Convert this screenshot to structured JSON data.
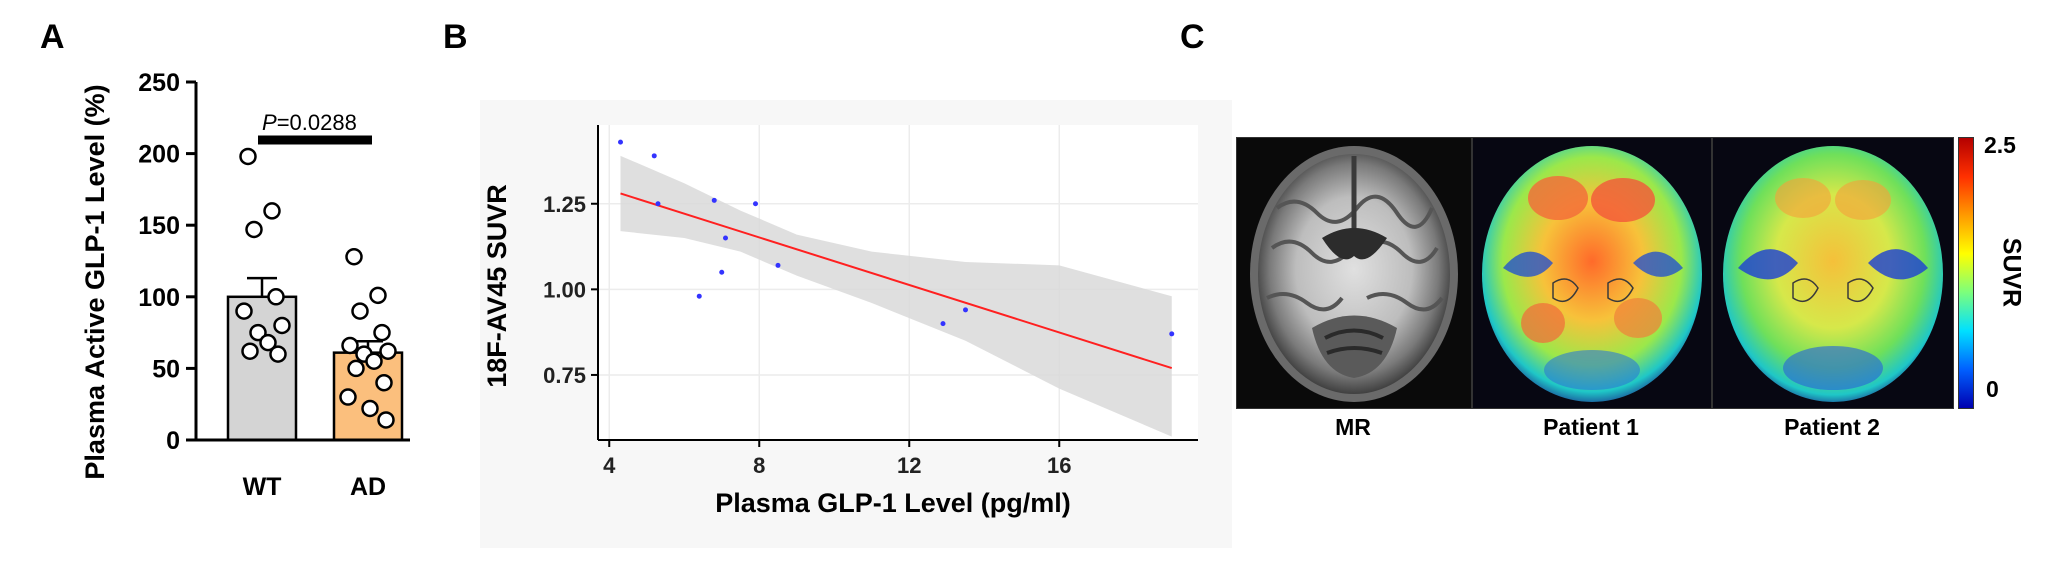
{
  "panels": {
    "a": "A",
    "b": "B",
    "c": "C"
  },
  "chart_data": [
    {
      "type": "bar",
      "panel": "A",
      "categories": [
        "WT",
        "AD"
      ],
      "values": [
        100,
        61
      ],
      "sem": [
        13,
        8
      ],
      "points": [
        [
          198,
          160,
          147,
          100,
          90,
          80,
          75,
          68,
          62,
          60
        ],
        [
          128,
          101,
          90,
          75,
          66,
          62,
          60,
          55,
          50,
          40,
          30,
          22,
          14
        ]
      ],
      "bar_colors": [
        "#d4d4d4",
        "#fbbf7d"
      ],
      "ylabel": "Plasma Active GLP-1 Level (%)",
      "yticks": [
        "0",
        "50",
        "100",
        "150",
        "200",
        "250"
      ],
      "ylim": [
        0,
        250
      ],
      "annotation": {
        "p_label": "P",
        "p_value": "=0.0288"
      }
    },
    {
      "type": "scatter",
      "panel": "B",
      "x": [
        4.3,
        5.2,
        5.3,
        6.4,
        6.8,
        7.1,
        7.0,
        7.9,
        8.5,
        12.9,
        13.5,
        19.0
      ],
      "y": [
        1.43,
        1.39,
        1.25,
        0.98,
        1.26,
        1.15,
        1.05,
        1.25,
        1.07,
        0.9,
        0.94,
        0.87
      ],
      "fit": {
        "x": [
          4.3,
          19.0
        ],
        "y": [
          1.28,
          0.77
        ]
      },
      "ci_upper": [
        1.39,
        1.31,
        1.23,
        1.16,
        1.11,
        1.08,
        1.07,
        0.98
      ],
      "ci_lower": [
        1.17,
        1.15,
        1.11,
        1.04,
        0.96,
        0.85,
        0.71,
        0.57
      ],
      "ci_x": [
        4.3,
        6.0,
        7.5,
        9.0,
        11.0,
        13.5,
        16.0,
        19.0
      ],
      "xlabel": "Plasma GLP-1 Level (pg/ml)",
      "ylabel": "18F-AV45 SUVR",
      "xticks": [
        "4",
        "8",
        "12",
        "16"
      ],
      "yticks": [
        "0.75",
        "1.00",
        "1.25"
      ],
      "xlim": [
        3.7,
        19.7
      ],
      "ylim": [
        0.56,
        1.48
      ],
      "grid": true,
      "point_color": "#3333ff",
      "line_color": "#ff2020"
    }
  ],
  "images": {
    "captions": [
      "MR",
      "Patient 1",
      "Patient 2"
    ],
    "colorbar": {
      "label": "SUVR",
      "max": "2.5",
      "min": "0"
    }
  }
}
